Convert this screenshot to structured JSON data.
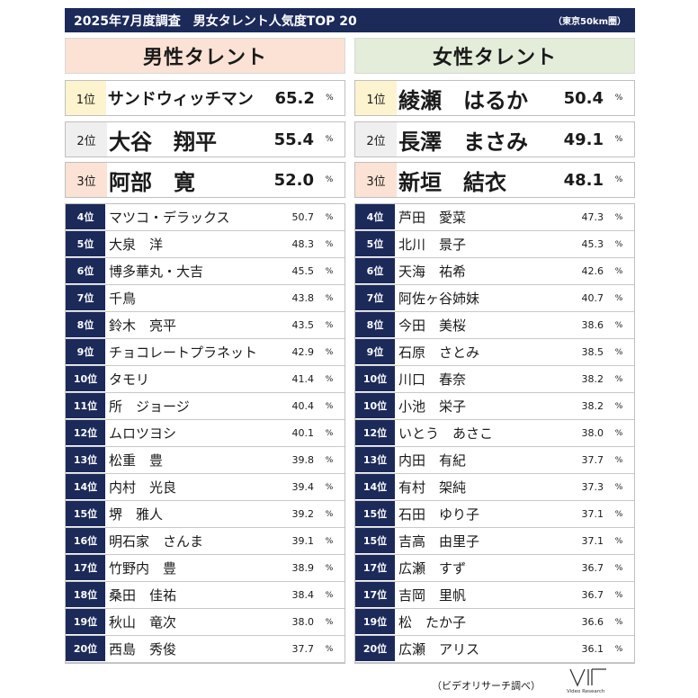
{
  "header": {
    "title": "2025年7月度調査　男女タレント人気度TOP 20",
    "note": "（東京50km圏）"
  },
  "male": {
    "title": "男性タレント",
    "top": [
      {
        "rank": "1位",
        "name": "サンドウィッチマン",
        "value": "65.2",
        "unit": "%"
      },
      {
        "rank": "2位",
        "name": "大谷　翔平",
        "value": "55.4",
        "unit": "%"
      },
      {
        "rank": "3位",
        "name": "阿部　寛",
        "value": "52.0",
        "unit": "%"
      }
    ],
    "list": [
      {
        "rank": "4位",
        "name": "マツコ・デラックス",
        "value": "50.7",
        "unit": "%"
      },
      {
        "rank": "5位",
        "name": "大泉　洋",
        "value": "48.3",
        "unit": "%"
      },
      {
        "rank": "6位",
        "name": "博多華丸・大吉",
        "value": "45.5",
        "unit": "%"
      },
      {
        "rank": "7位",
        "name": "千鳥",
        "value": "43.8",
        "unit": "%"
      },
      {
        "rank": "8位",
        "name": "鈴木　亮平",
        "value": "43.5",
        "unit": "%"
      },
      {
        "rank": "9位",
        "name": "チョコレートプラネット",
        "value": "42.9",
        "unit": "%"
      },
      {
        "rank": "10位",
        "name": "タモリ",
        "value": "41.4",
        "unit": "%"
      },
      {
        "rank": "11位",
        "name": "所　ジョージ",
        "value": "40.4",
        "unit": "%"
      },
      {
        "rank": "12位",
        "name": "ムロツヨシ",
        "value": "40.1",
        "unit": "%"
      },
      {
        "rank": "13位",
        "name": "松重　豊",
        "value": "39.8",
        "unit": "%"
      },
      {
        "rank": "14位",
        "name": "内村　光良",
        "value": "39.4",
        "unit": "%"
      },
      {
        "rank": "15位",
        "name": "堺　雅人",
        "value": "39.2",
        "unit": "%"
      },
      {
        "rank": "16位",
        "name": "明石家　さんま",
        "value": "39.1",
        "unit": "%"
      },
      {
        "rank": "17位",
        "name": "竹野内　豊",
        "value": "38.9",
        "unit": "%"
      },
      {
        "rank": "18位",
        "name": "桑田　佳祐",
        "value": "38.4",
        "unit": "%"
      },
      {
        "rank": "19位",
        "name": "秋山　竜次",
        "value": "38.0",
        "unit": "%"
      },
      {
        "rank": "20位",
        "name": "西島　秀俊",
        "value": "37.7",
        "unit": "%"
      }
    ]
  },
  "female": {
    "title": "女性タレント",
    "top": [
      {
        "rank": "1位",
        "name": "綾瀬　はるか",
        "value": "50.4",
        "unit": "%"
      },
      {
        "rank": "2位",
        "name": "長澤　まさみ",
        "value": "49.1",
        "unit": "%"
      },
      {
        "rank": "3位",
        "name": "新垣　結衣",
        "value": "48.1",
        "unit": "%"
      }
    ],
    "list": [
      {
        "rank": "4位",
        "name": "芦田　愛菜",
        "value": "47.3",
        "unit": "%"
      },
      {
        "rank": "5位",
        "name": "北川　景子",
        "value": "45.3",
        "unit": "%"
      },
      {
        "rank": "6位",
        "name": "天海　祐希",
        "value": "42.6",
        "unit": "%"
      },
      {
        "rank": "7位",
        "name": "阿佐ヶ谷姉妹",
        "value": "40.7",
        "unit": "%"
      },
      {
        "rank": "8位",
        "name": "今田　美桜",
        "value": "38.6",
        "unit": "%"
      },
      {
        "rank": "9位",
        "name": "石原　さとみ",
        "value": "38.5",
        "unit": "%"
      },
      {
        "rank": "10位",
        "name": "川口　春奈",
        "value": "38.2",
        "unit": "%"
      },
      {
        "rank": "10位",
        "name": "小池　栄子",
        "value": "38.2",
        "unit": "%"
      },
      {
        "rank": "12位",
        "name": "いとう　あさこ",
        "value": "38.0",
        "unit": "%"
      },
      {
        "rank": "13位",
        "name": "内田　有紀",
        "value": "37.7",
        "unit": "%"
      },
      {
        "rank": "14位",
        "name": "有村　架純",
        "value": "37.3",
        "unit": "%"
      },
      {
        "rank": "15位",
        "name": "石田　ゆり子",
        "value": "37.1",
        "unit": "%"
      },
      {
        "rank": "15位",
        "name": "吉高　由里子",
        "value": "37.1",
        "unit": "%"
      },
      {
        "rank": "17位",
        "name": "広瀬　すず",
        "value": "36.7",
        "unit": "%"
      },
      {
        "rank": "17位",
        "name": "吉岡　里帆",
        "value": "36.7",
        "unit": "%"
      },
      {
        "rank": "19位",
        "name": "松　たか子",
        "value": "36.6",
        "unit": "%"
      },
      {
        "rank": "20位",
        "name": "広瀬　アリス",
        "value": "36.1",
        "unit": "%"
      }
    ]
  },
  "footer": {
    "source": "（ビデオリサーチ調べ）",
    "logo_text": "Video Research"
  }
}
